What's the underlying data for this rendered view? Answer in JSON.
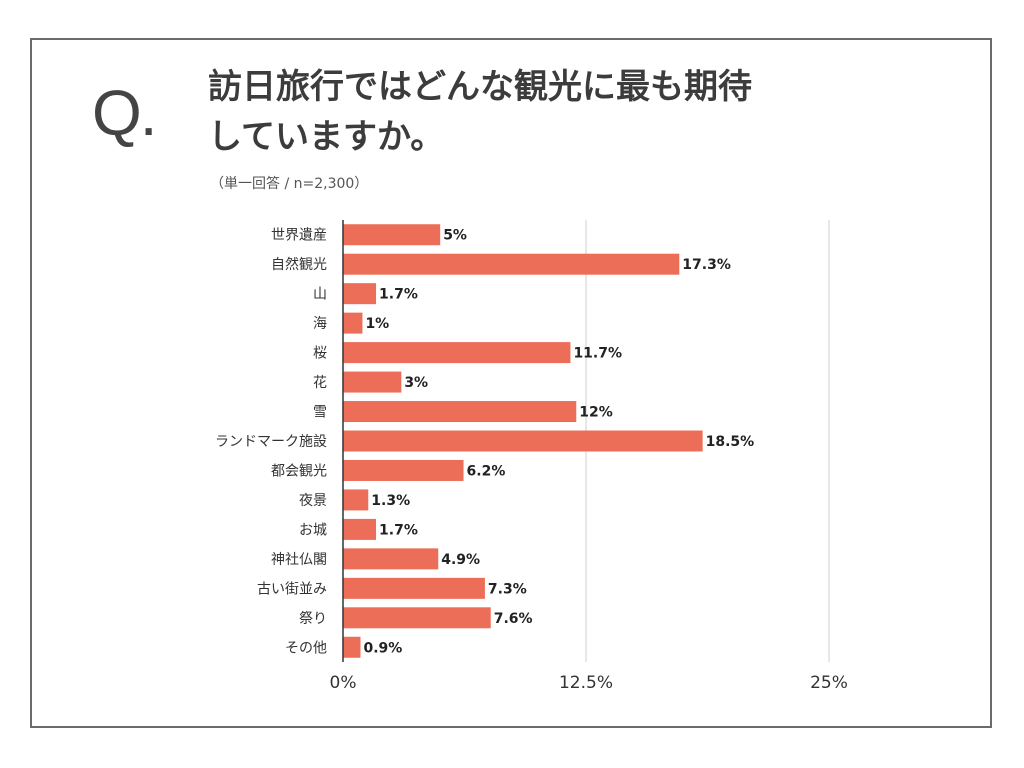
{
  "question": {
    "mark": "Q.",
    "title_line1": "訪日旅行ではどんな観光に最も期待",
    "title_line2": "していますか。",
    "note": "（単一回答 / n=2,300）"
  },
  "colors": {
    "bar": "#EC6E58",
    "grid": "#cfcfcf",
    "axis": "#333333"
  },
  "chart_data": {
    "type": "bar",
    "orientation": "horizontal",
    "title": "訪日旅行ではどんな観光に最も期待していますか。",
    "categories": [
      "世界遺産",
      "自然観光",
      "山",
      "海",
      "桜",
      "花",
      "雪",
      "ランドマーク施設",
      "都会観光",
      "夜景",
      "お城",
      "神社仏閣",
      "古い街並み",
      "祭り",
      "その他"
    ],
    "values": [
      5,
      17.3,
      1.7,
      1,
      11.7,
      3,
      12,
      18.5,
      6.2,
      1.3,
      1.7,
      4.9,
      7.3,
      7.6,
      0.9
    ],
    "value_labels": [
      "5%",
      "17.3%",
      "1.7%",
      "1%",
      "11.7%",
      "3%",
      "12%",
      "18.5%",
      "6.2%",
      "1.3%",
      "1.7%",
      "4.9%",
      "7.3%",
      "7.6%",
      "0.9%"
    ],
    "xlim": [
      0,
      25
    ],
    "xticks": [
      0,
      12.5,
      25
    ],
    "xtick_labels": [
      "0%",
      "12.5%",
      "25%"
    ],
    "xlabel": "",
    "ylabel": "",
    "grid": true
  }
}
